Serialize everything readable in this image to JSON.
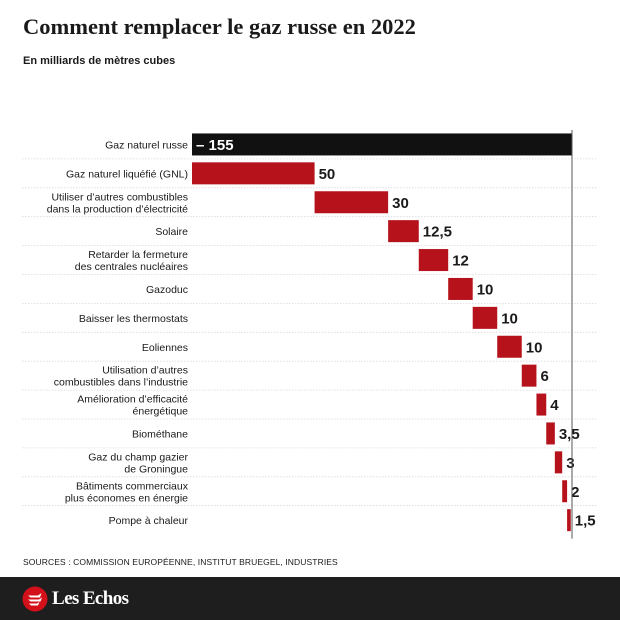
{
  "header": {
    "title": "Comment remplacer le gaz russe en 2022",
    "subtitle": "En milliards de mètres cubes"
  },
  "footer": {
    "sources": "SOURCES : COMMISSION EUROPÉENNE, INSTITUT BRUEGEL, INDUSTRIES",
    "brand": "Les Echos"
  },
  "colors": {
    "negative_bar": "#111111",
    "positive_bar": "#b5121b",
    "gridline": "#d9d9d9",
    "footer_background": "#1e1e1e"
  },
  "chart_data": {
    "type": "bar",
    "variant": "waterfall",
    "orientation": "horizontal",
    "categories": [
      "Gaz naturel russe",
      "Gaz naturel liquéfié (GNL)",
      "Utiliser d’autres combustibles dans la production d’électricité",
      "Solaire",
      "Retarder la fermeture des centrales nucléaires",
      "Gazoduc",
      "Baisser les thermostats",
      "Eoliennes",
      "Utilisation d’autres combustibles dans l’industrie",
      "Amélioration d’efficacité énergétique",
      "Biométhane",
      "Gaz du champ gazier de Groningue",
      "Bâtiments commerciaux plus économes en énergie",
      "Pompe à chaleur"
    ],
    "label_lines": [
      [
        "Gaz naturel russe"
      ],
      [
        "Gaz naturel liquéfié (GNL)"
      ],
      [
        "Utiliser d’autres combustibles",
        "dans la production d’électricité"
      ],
      [
        "Solaire"
      ],
      [
        "Retarder la fermeture",
        "des centrales nucléaires"
      ],
      [
        "Gazoduc"
      ],
      [
        "Baisser les thermostats"
      ],
      [
        "Eoliennes"
      ],
      [
        "Utilisation d’autres",
        "combustibles dans l’industrie"
      ],
      [
        "Amélioration d’efficacité",
        "énergétique"
      ],
      [
        "Biométhane"
      ],
      [
        "Gaz du champ gazier",
        "de Groningue"
      ],
      [
        "Bâtiments commerciaux",
        "plus économes en énergie"
      ],
      [
        "Pompe à chaleur"
      ]
    ],
    "values": [
      -155,
      50,
      30,
      12.5,
      12,
      10,
      10,
      10,
      6,
      4,
      3.5,
      3,
      2,
      1.5
    ],
    "value_labels": [
      "– 155",
      "50",
      "30",
      "12,5",
      "12",
      "10",
      "10",
      "10",
      "6",
      "4",
      "3,5",
      "3",
      "2",
      "1,5"
    ],
    "xlim": [
      0,
      155
    ]
  }
}
